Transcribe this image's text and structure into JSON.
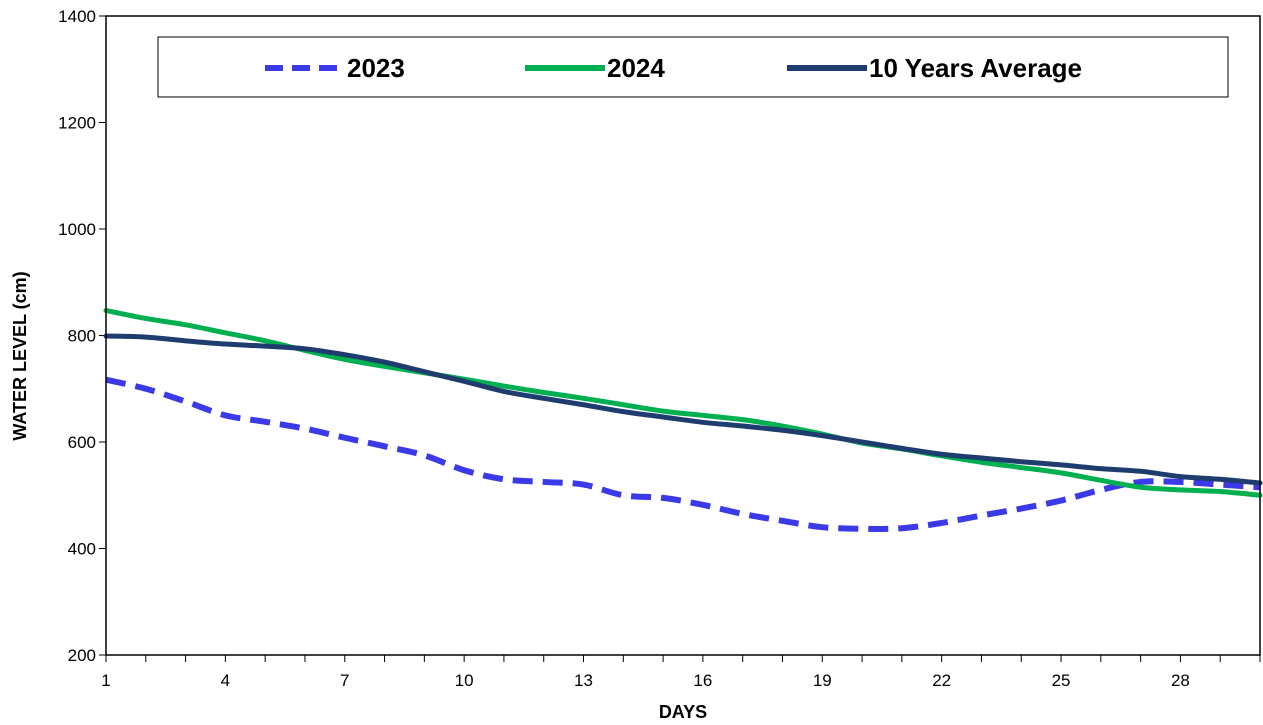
{
  "chart_data": {
    "type": "line",
    "title": "",
    "xlabel": "DAYS",
    "ylabel": "WATER LEVEL (cm)",
    "xlim": [
      1,
      30
    ],
    "ylim": [
      200,
      1400
    ],
    "x_ticks": [
      1,
      4,
      7,
      10,
      13,
      16,
      19,
      22,
      25,
      28
    ],
    "y_ticks": [
      200,
      400,
      600,
      800,
      1000,
      1200,
      1400
    ],
    "grid": false,
    "legend_position": "top",
    "x": [
      1,
      2,
      3,
      4,
      5,
      6,
      7,
      8,
      9,
      10,
      11,
      12,
      13,
      14,
      15,
      16,
      17,
      18,
      19,
      20,
      21,
      22,
      23,
      24,
      25,
      26,
      27,
      28,
      29,
      30
    ],
    "series": [
      {
        "name": "2023",
        "color": "#3a3ae8",
        "style": "dashed",
        "values": [
          717,
          700,
          676,
          650,
          638,
          625,
          608,
          592,
          575,
          547,
          530,
          525,
          520,
          500,
          495,
          482,
          465,
          452,
          440,
          437,
          438,
          448,
          462,
          475,
          490,
          510,
          525,
          525,
          520,
          515
        ]
      },
      {
        "name": "2024",
        "color": "#00b050",
        "style": "solid",
        "values": [
          847,
          832,
          820,
          805,
          790,
          772,
          755,
          742,
          730,
          718,
          705,
          693,
          682,
          670,
          658,
          650,
          642,
          630,
          615,
          598,
          587,
          574,
          562,
          552,
          542,
          528,
          515,
          510,
          507,
          500
        ]
      },
      {
        "name": "10 Years Average",
        "color": "#1f3c6e",
        "style": "solid",
        "values": [
          799,
          797,
          790,
          784,
          780,
          775,
          764,
          750,
          732,
          714,
          695,
          682,
          670,
          657,
          647,
          637,
          630,
          622,
          612,
          600,
          588,
          577,
          570,
          563,
          557,
          550,
          545,
          535,
          530,
          523
        ]
      }
    ]
  }
}
